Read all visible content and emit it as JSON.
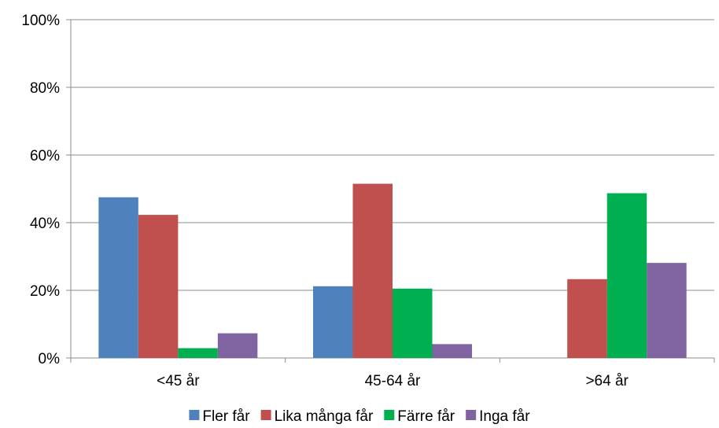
{
  "chart_data": {
    "type": "bar",
    "categories": [
      "<45 år",
      "45-64 år",
      ">64 år"
    ],
    "series": [
      {
        "name": "Fler får",
        "color": "#4F81BD",
        "values": [
          47.5,
          21.2,
          0
        ]
      },
      {
        "name": "Lika många får",
        "color": "#C0504D",
        "values": [
          42.3,
          51.5,
          23.3
        ]
      },
      {
        "name": "Färre får",
        "color": "#00B050",
        "values": [
          2.9,
          20.5,
          48.7
        ]
      },
      {
        "name": "Inga får",
        "color": "#8064A2",
        "values": [
          7.3,
          4.1,
          28.1
        ]
      }
    ],
    "y_ticks": [
      "0%",
      "20%",
      "40%",
      "60%",
      "80%",
      "100%"
    ],
    "ylim": [
      0,
      100
    ],
    "grid": true,
    "legend": "bottom"
  }
}
